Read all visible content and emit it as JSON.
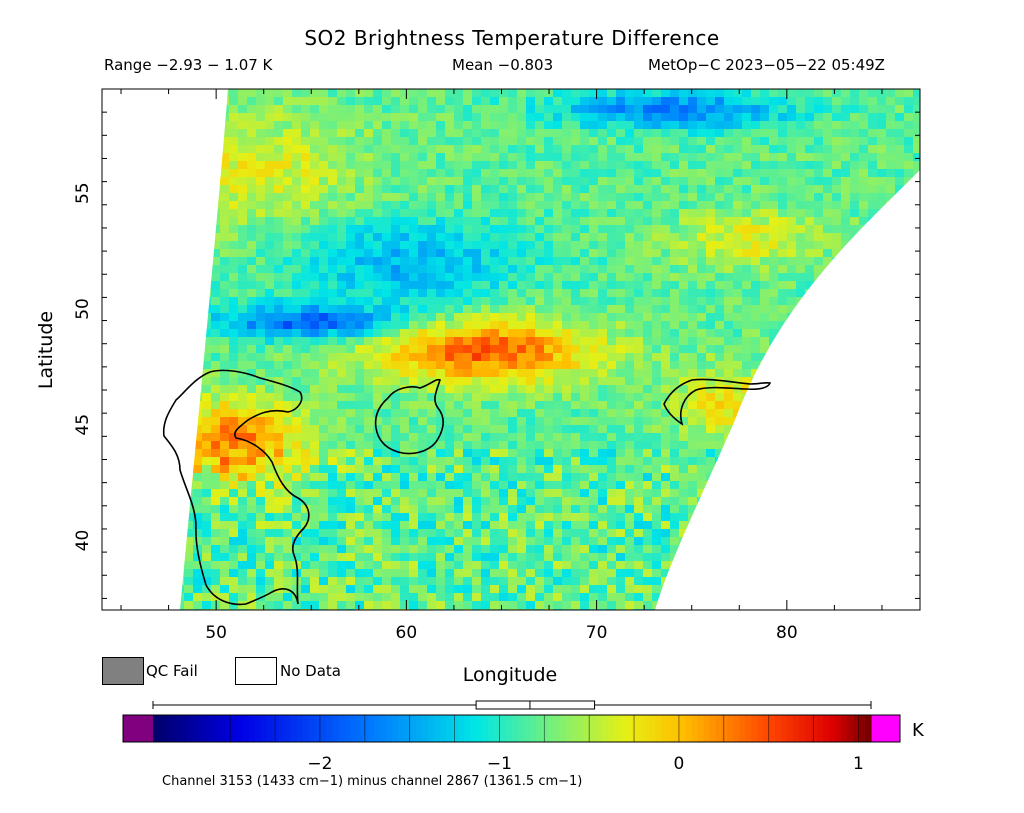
{
  "chart_data": {
    "type": "heatmap",
    "title": "SO2 Brightness Temperature Difference",
    "range_text": "Range −2.93 − 1.07 K",
    "mean_text": "Mean −0.803",
    "satellite_text": "MetOp−C 2023−05−22 05:49Z",
    "xlabel": "Longitude",
    "ylabel": "Latitude",
    "xlim": [
      44,
      87
    ],
    "ylim": [
      37,
      59.5
    ],
    "xticks": [
      50,
      60,
      70,
      80
    ],
    "yticks": [
      40,
      45,
      50,
      55
    ],
    "x_tick_labels": [
      "50",
      "60",
      "70",
      "80"
    ],
    "y_tick_labels": [
      "40",
      "45",
      "50",
      "55"
    ],
    "colorbar": {
      "min": -2.93,
      "max": 1.07,
      "ticks": [
        -2,
        -1,
        0,
        1
      ],
      "tick_labels": [
        "−2",
        "−1",
        "0",
        "1"
      ],
      "unit": "K",
      "boxplot": {
        "whisker_low": -2.93,
        "q1": -1.13,
        "median": -0.83,
        "q3": -0.47,
        "whisker_high": 1.07
      }
    },
    "field_features": [
      {
        "description": "positive band",
        "lat": 48.0,
        "lon_range": [
          58,
          70
        ],
        "value": 0.4
      },
      {
        "description": "positive region",
        "lat": 44.5,
        "lon_range": [
          47,
          55
        ],
        "value": 0.6
      },
      {
        "description": "negative band",
        "lat": 49.5,
        "lon_range": [
          48,
          62
        ],
        "value": -2.0
      },
      {
        "description": "negative streak",
        "lat": 58.5,
        "lon_range": [
          68,
          80
        ],
        "value": -1.8
      }
    ],
    "footnote": "Channel 3153 (1433 cm−1) minus channel 2867 (1361.5 cm−1)"
  },
  "legend": {
    "qc_fail_label": "QC Fail",
    "no_data_label": "No Data",
    "qc_fail_color": "#808080",
    "no_data_color": "#ffffff"
  },
  "colors": {
    "below_range": "#800080",
    "above_range": "#ff00ff",
    "coastline": "#000000"
  }
}
